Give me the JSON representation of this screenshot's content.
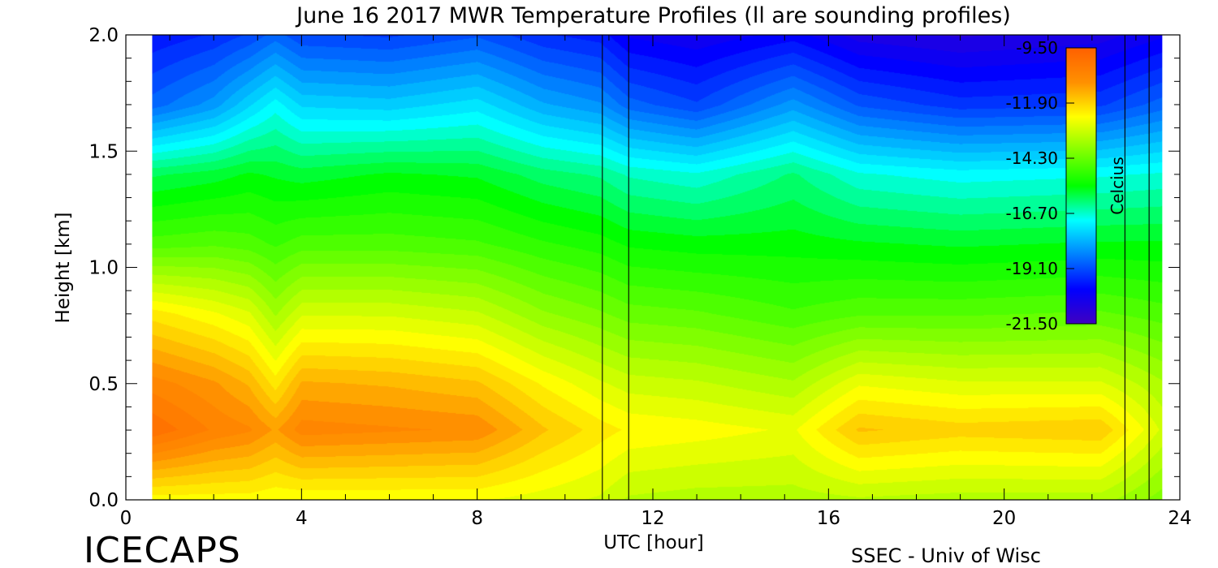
{
  "chart_data": {
    "type": "heatmap",
    "title": "June 16 2017 MWR Temperature Profiles (ll are sounding profiles)",
    "xlabel": "UTC [hour]",
    "ylabel": "Height [km]",
    "xlim": [
      0,
      24
    ],
    "ylim": [
      0,
      2
    ],
    "xticks": [
      0,
      4,
      8,
      12,
      16,
      20,
      24
    ],
    "yticks": [
      0.0,
      0.5,
      1.0,
      1.5,
      2.0
    ],
    "xtick_labels": [
      "0",
      "4",
      "8",
      "12",
      "16",
      "20",
      "24"
    ],
    "ytick_labels": [
      "0.0",
      "0.5",
      "1.0",
      "1.5",
      "2.0"
    ],
    "data_x_range": [
      0.6,
      23.6
    ],
    "colorbar": {
      "label": "Celcius",
      "range": [
        -21.5,
        -9.5
      ],
      "tick_values": [
        -9.5,
        -11.9,
        -14.3,
        -16.7,
        -19.1,
        -21.5
      ],
      "tick_labels": [
        "-9.50",
        "-11.90",
        "-14.30",
        "-16.70",
        "-19.10",
        "-21.50"
      ],
      "colors": [
        "#4000c0",
        "#0000ff",
        "#0080ff",
        "#00ffff",
        "#00ff00",
        "#80ff00",
        "#ffff00",
        "#ff9000",
        "#ff6000"
      ]
    },
    "sounding_times": [
      10.85,
      11.45,
      22.75,
      23.3
    ],
    "profiles": [
      {
        "t": 0.6,
        "values": [
          -12.5,
          -10.0,
          -10.7,
          -12.2,
          -14.6,
          -16.0,
          -18.8,
          -19.8
        ]
      },
      {
        "t": 2.0,
        "values": [
          -12.5,
          -10.6,
          -11.1,
          -12.6,
          -14.5,
          -15.8,
          -18.2,
          -19.5
        ]
      },
      {
        "t": 2.8,
        "values": [
          -12.5,
          -10.8,
          -11.5,
          -12.9,
          -14.6,
          -15.6,
          -17.5,
          -19.2
        ]
      },
      {
        "t": 3.4,
        "values": [
          -12.6,
          -11.2,
          -12.2,
          -13.6,
          -14.8,
          -15.7,
          -17.0,
          -18.8
        ]
      },
      {
        "t": 4.0,
        "values": [
          -12.6,
          -10.7,
          -11.4,
          -13.0,
          -14.6,
          -15.8,
          -17.5,
          -19.2
        ]
      },
      {
        "t": 6.0,
        "values": [
          -12.6,
          -10.8,
          -11.5,
          -13.0,
          -14.6,
          -15.6,
          -17.6,
          -19.3
        ]
      },
      {
        "t": 8.0,
        "values": [
          -12.6,
          -10.9,
          -11.7,
          -13.2,
          -14.7,
          -15.7,
          -17.3,
          -19.0
        ]
      },
      {
        "t": 9.5,
        "values": [
          -12.8,
          -11.7,
          -12.4,
          -13.8,
          -15.0,
          -16.1,
          -18.0,
          -19.5
        ]
      },
      {
        "t": 10.8,
        "values": [
          -13.0,
          -12.2,
          -12.9,
          -14.1,
          -15.2,
          -16.3,
          -18.3,
          -19.7
        ]
      },
      {
        "t": 11.45,
        "values": [
          -13.3,
          -12.4,
          -13.1,
          -14.3,
          -15.4,
          -16.6,
          -18.8,
          -20.2
        ]
      },
      {
        "t": 13.0,
        "values": [
          -13.4,
          -12.5,
          -13.2,
          -14.4,
          -15.5,
          -16.8,
          -19.2,
          -20.4
        ]
      },
      {
        "t": 15.2,
        "values": [
          -13.4,
          -12.7,
          -13.5,
          -14.7,
          -15.5,
          -16.2,
          -18.2,
          -20.0
        ]
      },
      {
        "t": 16.7,
        "values": [
          -13.3,
          -11.7,
          -12.7,
          -14.5,
          -15.6,
          -16.8,
          -19.0,
          -20.6
        ]
      },
      {
        "t": 19.0,
        "values": [
          -13.4,
          -11.9,
          -12.9,
          -14.5,
          -15.7,
          -17.0,
          -19.4,
          -20.8
        ]
      },
      {
        "t": 22.2,
        "values": [
          -13.4,
          -11.8,
          -12.9,
          -14.4,
          -15.6,
          -16.9,
          -19.3,
          -20.6
        ]
      },
      {
        "t": 23.6,
        "values": [
          -14.0,
          -13.0,
          -13.5,
          -14.6,
          -15.6,
          -16.8,
          -18.8,
          -20.2
        ]
      }
    ],
    "profile_heights": [
      0.0,
      0.3,
      0.5,
      0.8,
      1.1,
      1.4,
      1.7,
      2.0
    ]
  },
  "footer": {
    "left_label": "ICECAPS",
    "right_label": "SSEC - Univ of Wisc"
  }
}
